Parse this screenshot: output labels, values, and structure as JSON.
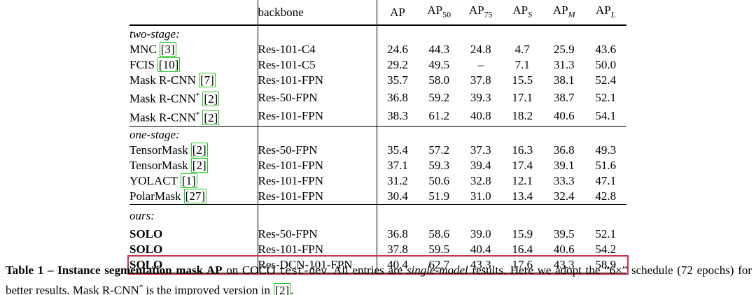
{
  "colors": {
    "citation_green": "#21c421",
    "highlight_red": "#cc3350",
    "text": "#000000",
    "background": "#ffffff"
  },
  "table": {
    "metric_headers": [
      {
        "base": "AP",
        "sub": ""
      },
      {
        "base": "AP",
        "sub": "50",
        "italic_sub": false
      },
      {
        "base": "AP",
        "sub": "75",
        "italic_sub": false
      },
      {
        "base": "AP",
        "sub": "S",
        "italic_sub": true
      },
      {
        "base": "AP",
        "sub": "M",
        "italic_sub": true
      },
      {
        "base": "AP",
        "sub": "L",
        "italic_sub": true
      }
    ],
    "backbone_header": "backbone",
    "sections": [
      {
        "label": "two-stage:",
        "rows": [
          {
            "method": "MNC",
            "star": false,
            "bold": false,
            "cite": "[3]",
            "backbone": "Res-101-C4",
            "values": [
              "24.6",
              "44.3",
              "24.8",
              "4.7",
              "25.9",
              "43.6"
            ]
          },
          {
            "method": "FCIS",
            "star": false,
            "bold": false,
            "cite": "[10]",
            "backbone": "Res-101-C5",
            "values": [
              "29.2",
              "49.5",
              "–",
              "7.1",
              "31.3",
              "50.0"
            ]
          },
          {
            "method": "Mask R-CNN",
            "star": false,
            "bold": false,
            "cite": "[7]",
            "backbone": "Res-101-FPN",
            "values": [
              "35.7",
              "58.0",
              "37.8",
              "15.5",
              "38.1",
              "52.4"
            ]
          },
          {
            "method": "Mask R-CNN",
            "star": true,
            "bold": false,
            "cite": "[2]",
            "backbone": "Res-50-FPN",
            "values": [
              "36.8",
              "59.2",
              "39.3",
              "17.1",
              "38.7",
              "52.1"
            ]
          },
          {
            "method": "Mask R-CNN",
            "star": true,
            "bold": false,
            "cite": "[2]",
            "backbone": "Res-101-FPN",
            "values": [
              "38.3",
              "61.2",
              "40.8",
              "18.2",
              "40.6",
              "54.1"
            ]
          }
        ]
      },
      {
        "label": "one-stage:",
        "rows": [
          {
            "method": "TensorMask",
            "star": false,
            "bold": false,
            "cite": "[2]",
            "backbone": "Res-50-FPN",
            "values": [
              "35.4",
              "57.2",
              "37.3",
              "16.3",
              "36.8",
              "49.3"
            ]
          },
          {
            "method": "TensorMask",
            "star": false,
            "bold": false,
            "cite": "[2]",
            "backbone": "Res-101-FPN",
            "values": [
              "37.1",
              "59.3",
              "39.4",
              "17.4",
              "39.1",
              "51.6"
            ]
          },
          {
            "method": "YOLACT",
            "star": false,
            "bold": false,
            "cite": "[1]",
            "backbone": "Res-101-FPN",
            "values": [
              "31.2",
              "50.6",
              "32.8",
              "12.1",
              "33.3",
              "47.1"
            ]
          },
          {
            "method": "PolarMask",
            "star": false,
            "bold": false,
            "cite": "[27]",
            "backbone": "Res-101-FPN",
            "values": [
              "30.4",
              "51.9",
              "31.0",
              "13.4",
              "32.4",
              "42.8"
            ]
          }
        ]
      },
      {
        "label": "ours:",
        "rows": [
          {
            "method": "SOLO",
            "star": false,
            "bold": true,
            "cite": "",
            "backbone": "Res-50-FPN",
            "values": [
              "36.8",
              "58.6",
              "39.0",
              "15.9",
              "39.5",
              "52.1"
            ]
          },
          {
            "method": "SOLO",
            "star": false,
            "bold": true,
            "cite": "",
            "backbone": "Res-101-FPN",
            "values": [
              "37.8",
              "59.5",
              "40.4",
              "16.4",
              "40.6",
              "54.2"
            ]
          },
          {
            "method": "SOLO",
            "star": false,
            "bold": true,
            "cite": "",
            "backbone": "Res-DCN-101-FPN",
            "values": [
              "40.4",
              "62.7",
              "43.3",
              "17.6",
              "43.3",
              "58.9"
            ],
            "highlighted": true
          }
        ]
      }
    ]
  },
  "caption": {
    "segments": [
      {
        "text": "Table 1 – Instance segmentation mask AP",
        "style": "bold"
      },
      {
        "text": " on COCO ",
        "style": "normal"
      },
      {
        "text": "test-dev",
        "style": "mono"
      },
      {
        "text": ".  All entries are ",
        "style": "normal"
      },
      {
        "text": "single-model",
        "style": "italic"
      },
      {
        "text": " results.  Here we adopt the “6×” schedule (72 epochs) for better results.  Mask R-CNN",
        "style": "normal"
      },
      {
        "text": "*",
        "style": "sup"
      },
      {
        "text": " is the improved version in ",
        "style": "normal"
      },
      {
        "text": "[2]",
        "style": "cite"
      },
      {
        "text": ".",
        "style": "normal"
      }
    ]
  }
}
